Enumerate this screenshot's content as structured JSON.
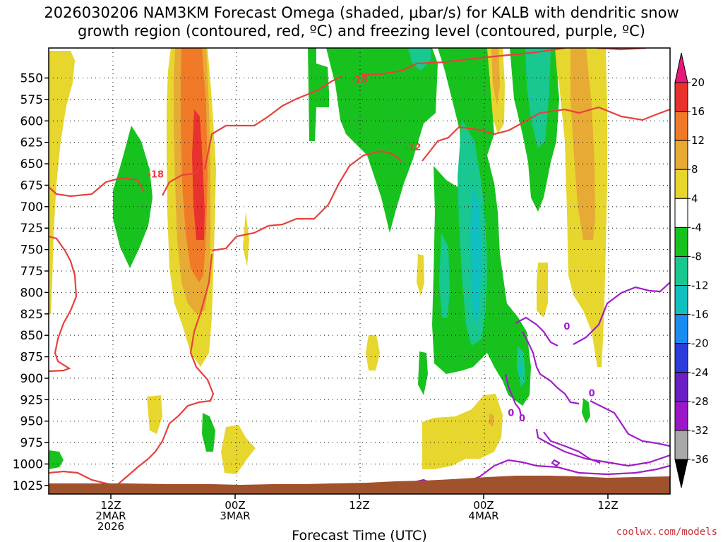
{
  "title": {
    "line1": "2026030206 NAM3KM Forecast Omega (shaded, μbar/s) for KALB with dendritic snow",
    "line2": "growth region (contoured, red, ºC) and freezing level (contoured, purple, ºC)"
  },
  "credit": "coolwx.com/models",
  "chart_data": {
    "type": "heatmap",
    "xlabel": "Forecast Time (UTC)",
    "ylabel": "",
    "x_range_hours": [
      -5,
      45
    ],
    "y_scale": "pressure (hPa), decreasing upward",
    "ylim": [
      1035,
      515
    ],
    "y_ticks": [
      550,
      575,
      600,
      625,
      650,
      675,
      700,
      725,
      750,
      775,
      800,
      825,
      850,
      875,
      900,
      925,
      950,
      975,
      1000,
      1025
    ],
    "x_ticks": [
      {
        "hour": 0,
        "lines": [
          "12Z",
          "2MAR",
          "2026"
        ]
      },
      {
        "hour": 10,
        "lines": [
          "00Z",
          "3MAR"
        ]
      },
      {
        "hour": 20,
        "lines": [
          "12Z"
        ]
      },
      {
        "hour": 30,
        "lines": [
          "00Z",
          "4MAR"
        ]
      },
      {
        "hour": 40,
        "lines": [
          "12Z"
        ]
      }
    ],
    "grid": true,
    "colorbar": {
      "labels": [
        "20",
        "16",
        "12",
        "8",
        "4",
        "-4",
        "-8",
        "-12",
        "-16",
        "-20",
        "-24",
        "-28",
        "-32",
        "-36"
      ],
      "colors": [
        "#e8322d",
        "#f07a28",
        "#e6aa35",
        "#e6d62e",
        "#ffffff",
        "#18c21e",
        "#19c790",
        "#10bfc0",
        "#1a8cf0",
        "#2c3bdc",
        "#6a1fc4",
        "#9a18c8",
        "#a8a8a8"
      ],
      "top_arrow_color": "#e6187a",
      "bottom_arrow_color": "#000000"
    },
    "omega_legend_colors": {
      "positive_4_8": "#e6d62e",
      "positive_8_12": "#e6aa35",
      "positive_12_16": "#f07a28",
      "positive_16_20": "#e8322d",
      "negative_4_8": "#18c21e",
      "negative_8_12": "#19c790",
      "negative_12_16": "#10bfc0"
    },
    "contours": [
      {
        "name": "dgz_upper",
        "color": "#e8403c",
        "labels": [
          {
            "text": "-18",
            "hour": 20.0,
            "p": 551
          }
        ]
      },
      {
        "name": "dgz_lower",
        "color": "#e8403c",
        "labels": [
          {
            "text": "-12",
            "hour": 24.3,
            "p": 630
          }
        ]
      },
      {
        "name": "dgz_left_upper",
        "color": "#e8403c",
        "labels": [
          {
            "text": "-18",
            "hour": 3.6,
            "p": 662
          }
        ]
      },
      {
        "name": "freezing_level",
        "color": "#a01ec8",
        "labels": [
          {
            "text": "0",
            "hour": 36.7,
            "p": 839
          },
          {
            "text": "0",
            "hour": 38.7,
            "p": 917
          },
          {
            "text": "0",
            "hour": 32.2,
            "p": 940
          },
          {
            "text": "0",
            "hour": 33.1,
            "p": 946
          }
        ]
      }
    ],
    "terrain_color": "#a0522d"
  }
}
